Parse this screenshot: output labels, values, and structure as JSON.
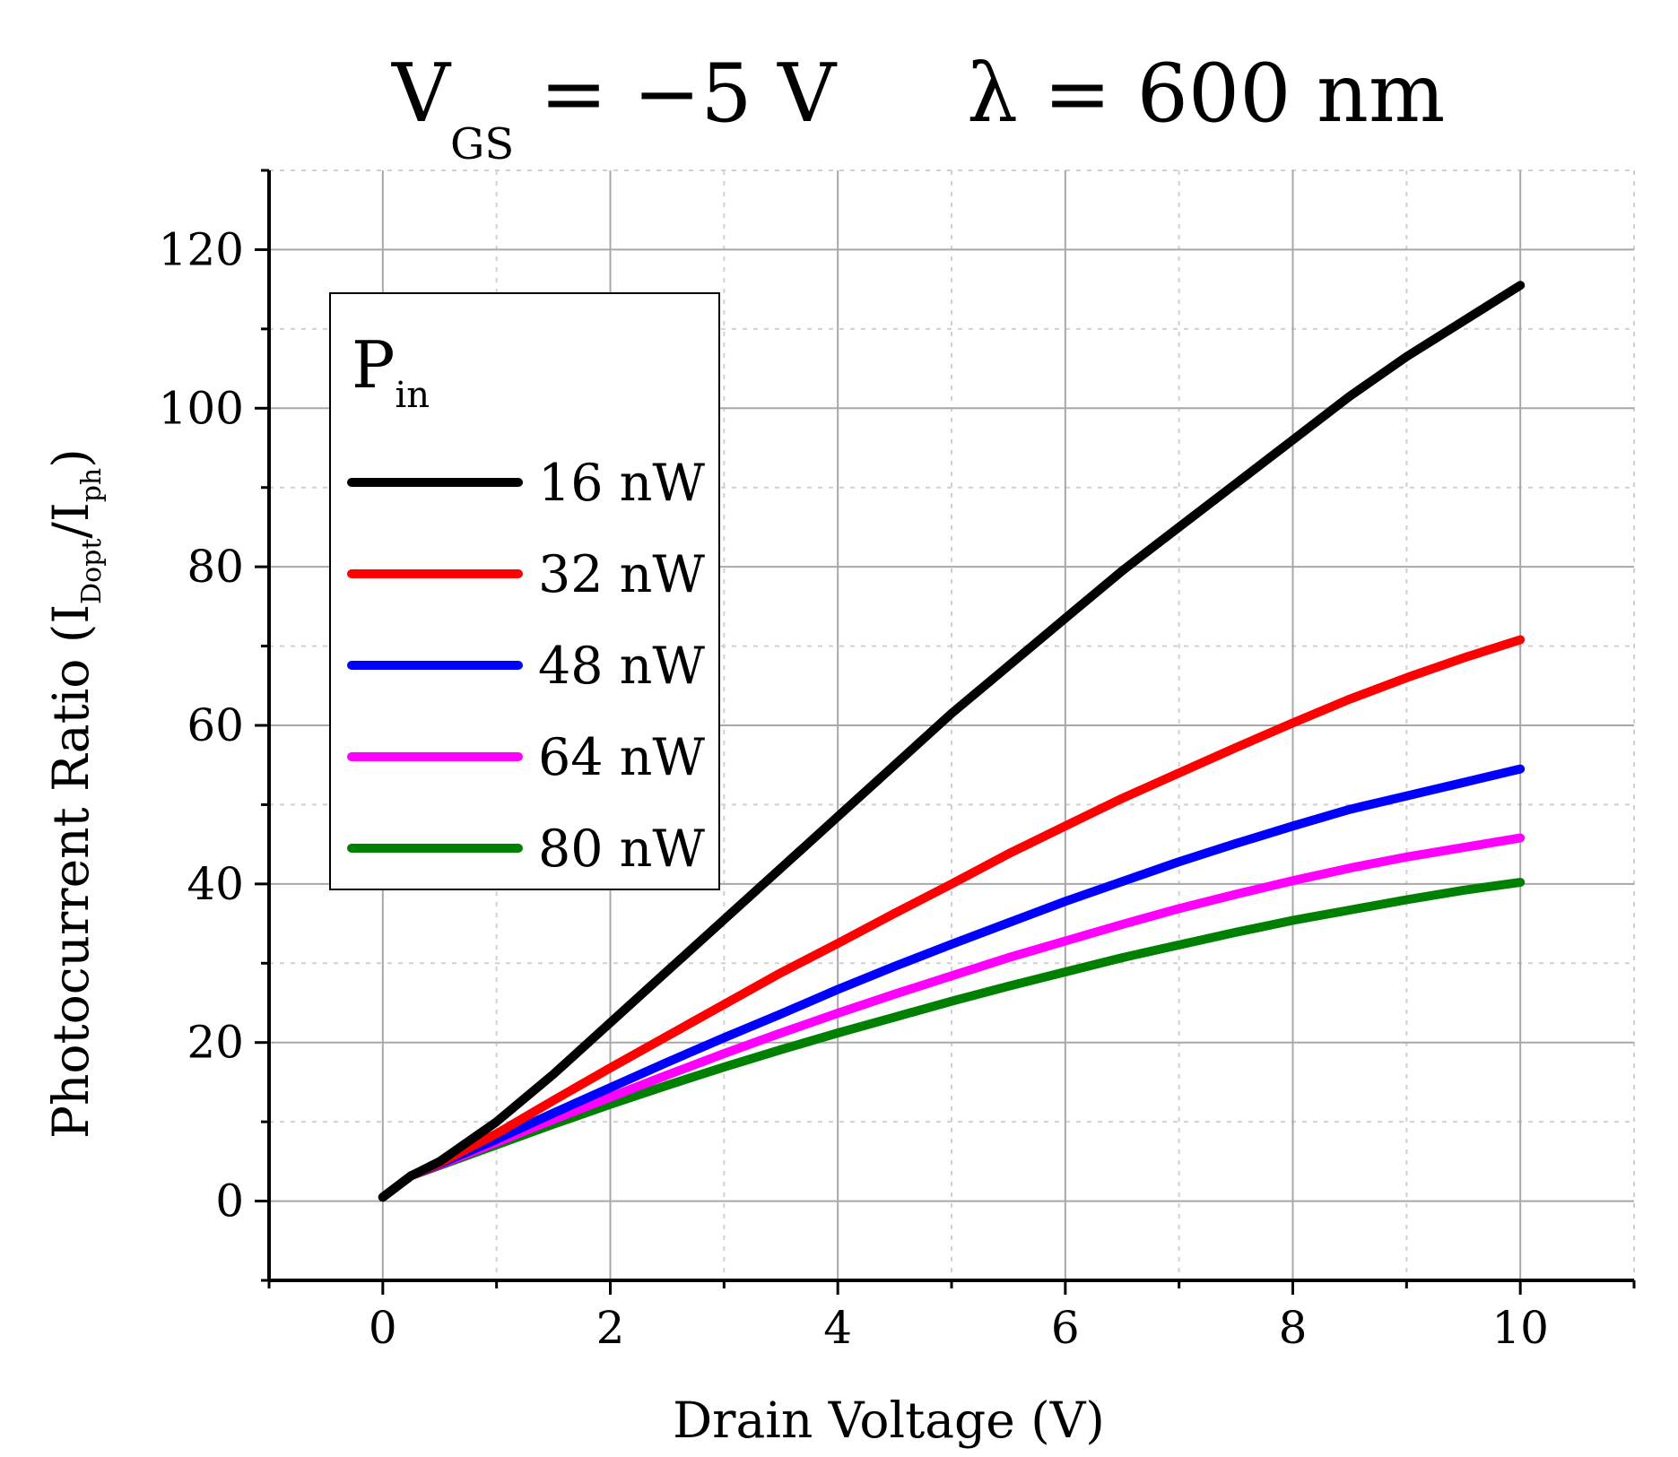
{
  "chart_data": {
    "type": "line",
    "title": {
      "vgs_main": "V",
      "vgs_sub": "GS",
      "vgs_value": " = −5 V",
      "lambda_text": "λ = 600 nm"
    },
    "xlabel": "Drain Voltage (V)",
    "ylabel": {
      "main": "Photocurrent Ratio (I",
      "sub1": "Dopt",
      "mid": "/I",
      "sub2": "ph",
      "end": ")"
    },
    "xlim": [
      -1,
      11
    ],
    "ylim": [
      -10,
      130
    ],
    "x_ticks": [
      0,
      2,
      4,
      6,
      8,
      10
    ],
    "x_tick_labels": [
      "0",
      "2",
      "4",
      "6",
      "8",
      "10"
    ],
    "y_ticks": [
      0,
      20,
      40,
      60,
      80,
      100,
      120
    ],
    "y_tick_labels": [
      "0",
      "20",
      "40",
      "60",
      "80",
      "100",
      "120"
    ],
    "grid": true,
    "legend": {
      "title_main": "P",
      "title_sub": "in",
      "placement": "top-left"
    },
    "x": [
      0,
      0.25,
      0.5,
      1,
      1.5,
      2,
      2.5,
      3,
      3.5,
      4,
      4.5,
      5,
      5.5,
      6,
      6.5,
      7,
      7.5,
      8,
      8.5,
      9,
      9.5,
      10
    ],
    "series": [
      {
        "name": "16 nW",
        "color": "#000000",
        "values": [
          0.5,
          3.2,
          5.0,
          10.0,
          16.0,
          22.5,
          29.0,
          35.5,
          42.0,
          48.5,
          55.0,
          61.5,
          67.5,
          73.5,
          79.5,
          85.0,
          90.5,
          96.0,
          101.5,
          106.5,
          111.0,
          115.5
        ]
      },
      {
        "name": "32 nW",
        "color": "#ff0000",
        "values": [
          0.5,
          3.2,
          4.8,
          8.5,
          12.7,
          16.8,
          20.8,
          24.8,
          28.8,
          32.5,
          36.3,
          40.0,
          43.8,
          47.3,
          50.8,
          54.0,
          57.2,
          60.3,
          63.3,
          66.0,
          68.5,
          70.8
        ]
      },
      {
        "name": "48 nW",
        "color": "#0000ff",
        "values": [
          0.5,
          3.2,
          4.7,
          7.8,
          11.1,
          14.3,
          17.5,
          20.6,
          23.6,
          26.7,
          29.6,
          32.4,
          35.1,
          37.8,
          40.3,
          42.8,
          45.1,
          47.3,
          49.4,
          51.1,
          52.8,
          54.5
        ]
      },
      {
        "name": "64 nW",
        "color": "#ff00ff",
        "values": [
          0.5,
          3.2,
          4.6,
          7.4,
          10.3,
          13.1,
          15.9,
          18.6,
          21.2,
          23.7,
          26.1,
          28.4,
          30.7,
          32.8,
          34.9,
          36.9,
          38.7,
          40.4,
          42.0,
          43.4,
          44.6,
          45.8
        ]
      },
      {
        "name": "80 nW",
        "color": "#008000",
        "values": [
          0.5,
          3.2,
          4.5,
          7.1,
          9.7,
          12.2,
          14.6,
          16.9,
          19.1,
          21.2,
          23.2,
          25.2,
          27.1,
          28.9,
          30.7,
          32.3,
          33.9,
          35.4,
          36.7,
          38.0,
          39.2,
          40.2
        ]
      }
    ]
  }
}
